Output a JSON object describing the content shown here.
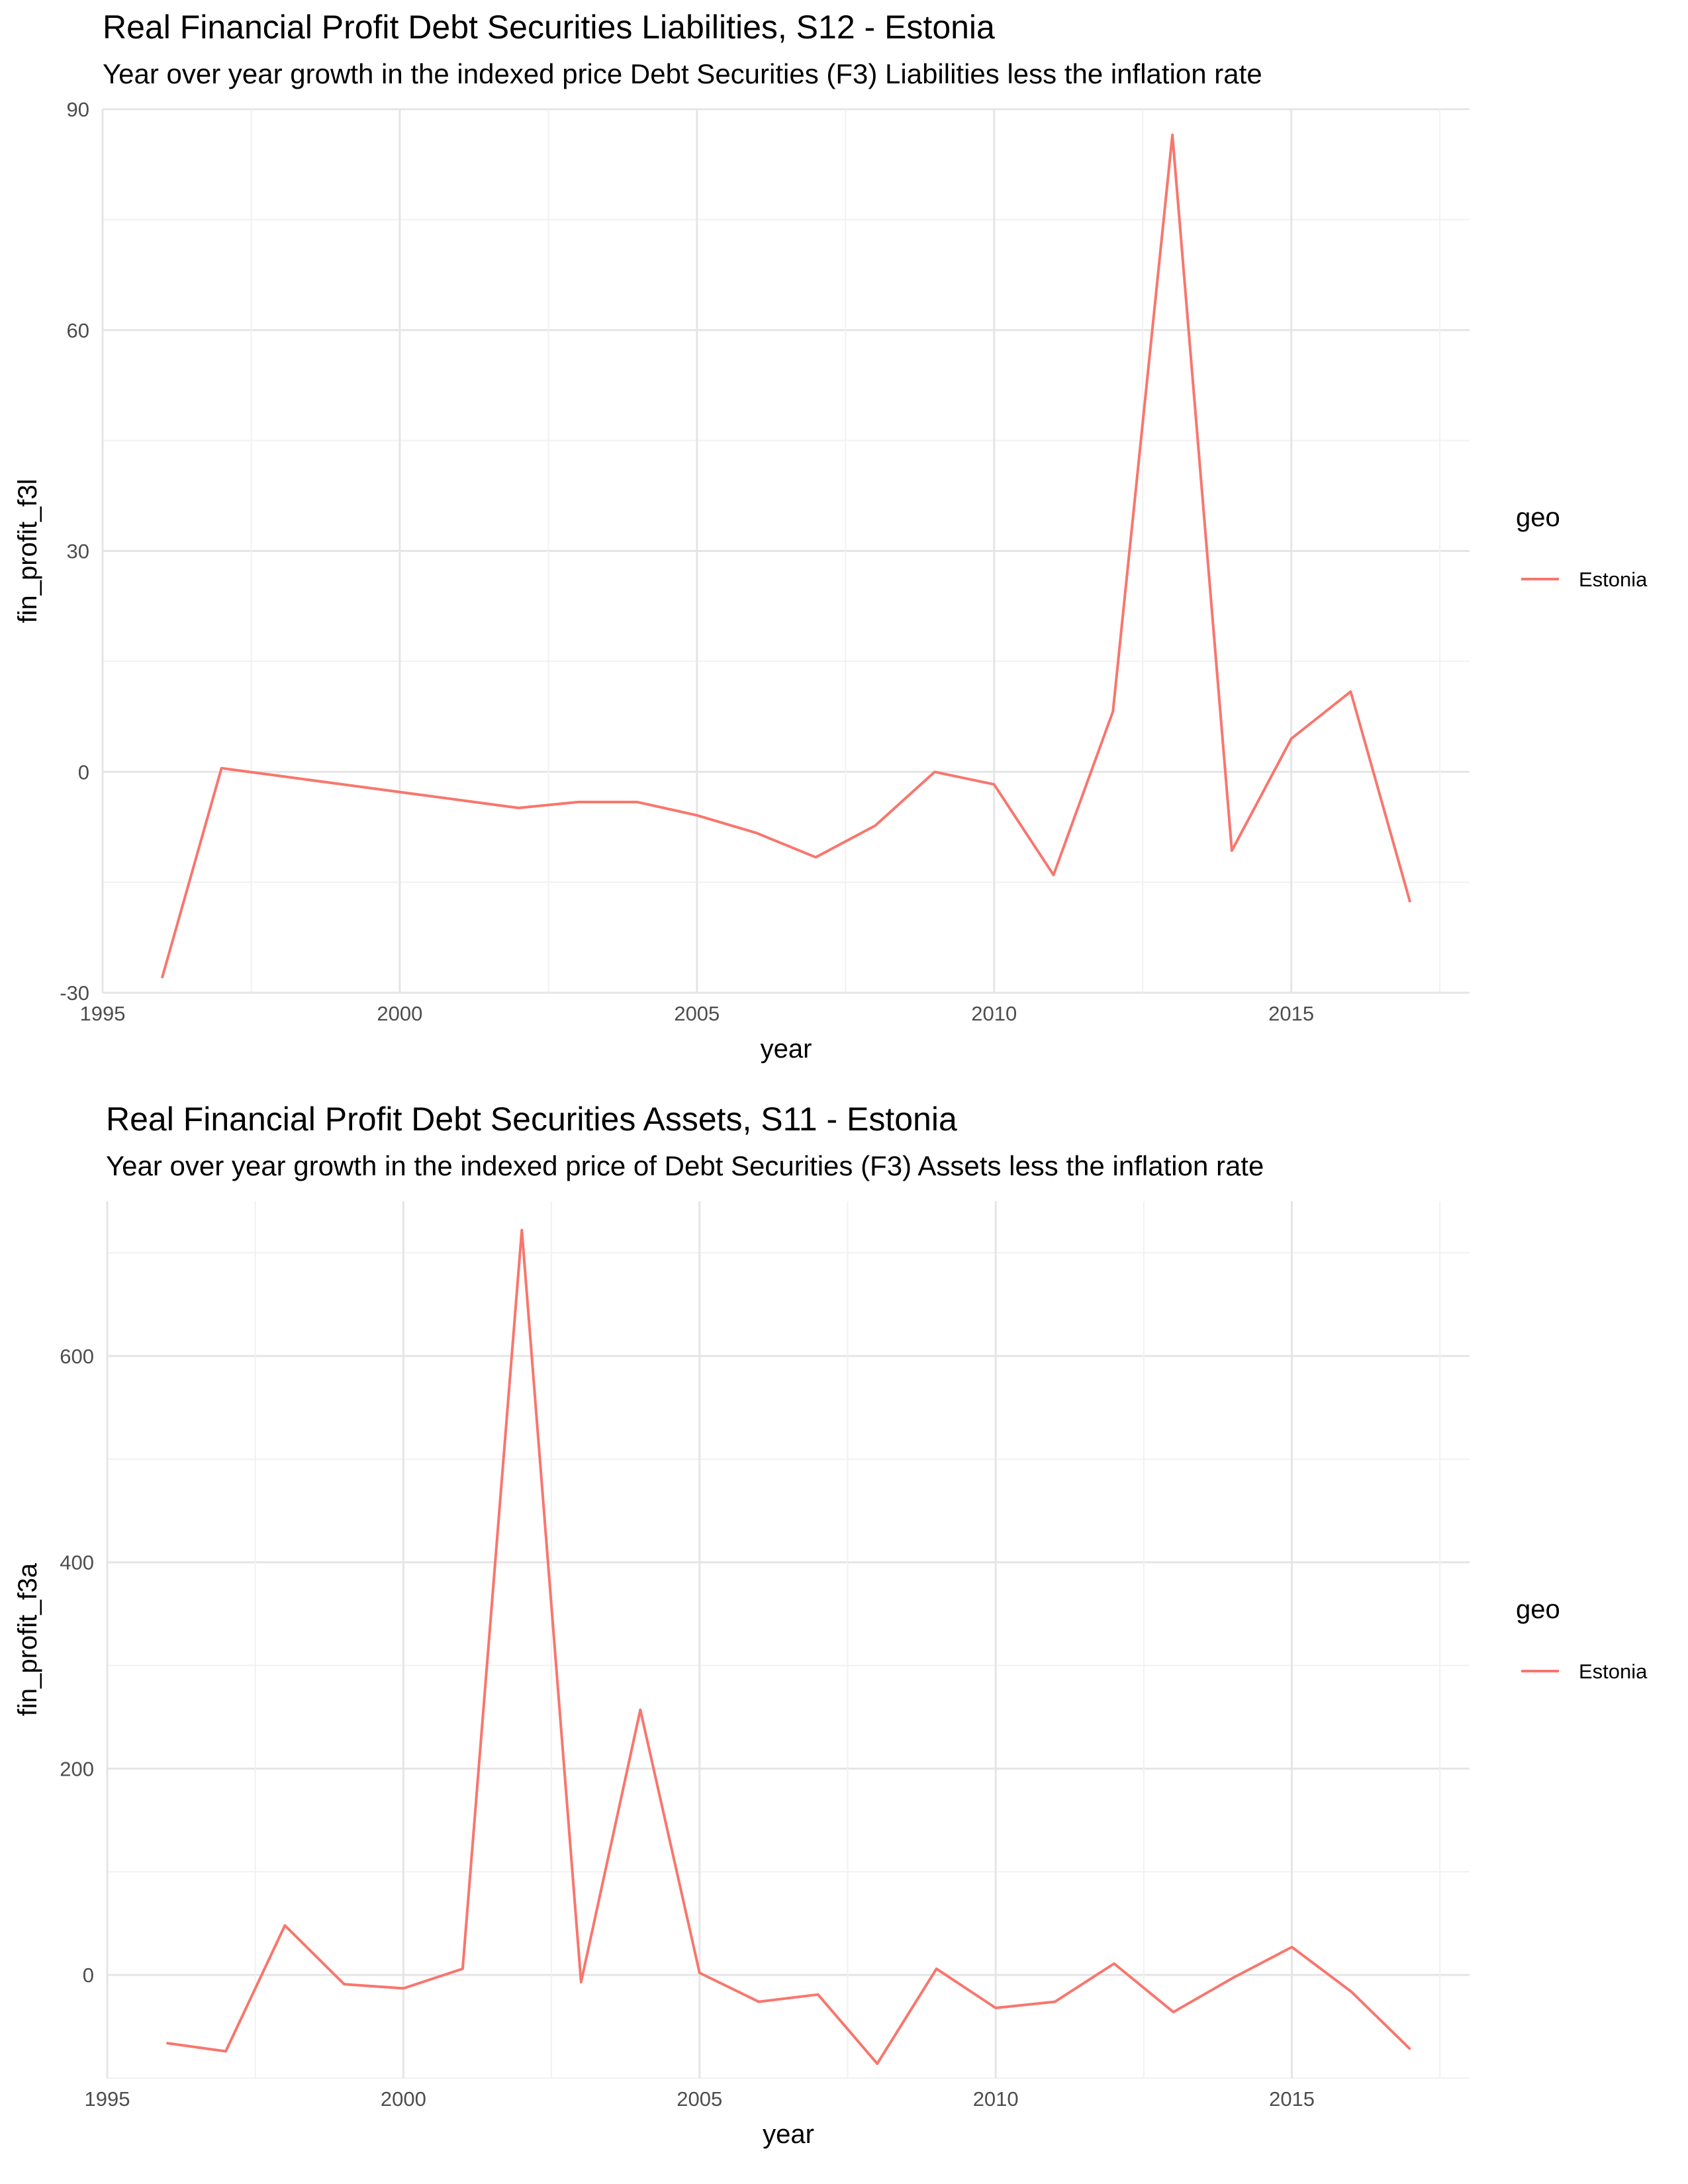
{
  "chart_data": [
    {
      "type": "line",
      "title": "Real Financial Profit Debt Securities Liabilities, S12 - Estonia",
      "subtitle": "Year over year growth in the indexed price Debt Securities (F3) Liabilities less the inflation rate",
      "xlabel": "year",
      "ylabel": "fin_profit_f3l",
      "xlim": [
        1995,
        2018
      ],
      "ylim": [
        -30,
        90
      ],
      "x_ticks": [
        1995,
        2000,
        2005,
        2010,
        2015
      ],
      "y_ticks": [
        -30,
        0,
        30,
        60,
        90
      ],
      "grid": true,
      "legend": {
        "title": "geo",
        "position": "right"
      },
      "series": [
        {
          "name": "Estonia",
          "color": "#F8766D",
          "x": [
            1996,
            1997,
            2002,
            2003,
            2004,
            2005,
            2006,
            2007,
            2008,
            2009,
            2010,
            2011,
            2012,
            2013,
            2014,
            2015,
            2016,
            2017
          ],
          "y": [
            -28,
            0.5,
            -4.9,
            -4.1,
            -4.1,
            -5.9,
            -8.3,
            -11.6,
            -7.3,
            0.0,
            -1.7,
            -14.0,
            8.2,
            86.5,
            -10.7,
            4.5,
            10.9,
            -17.7
          ]
        }
      ]
    },
    {
      "type": "line",
      "title": "Real Financial Profit Debt Securities Assets, S11 - Estonia",
      "subtitle": "Year over year growth in the indexed price of Debt Securities (F3) Assets less the inflation rate",
      "xlabel": "year",
      "ylabel": "fin_profit_f3a",
      "xlim": [
        1995,
        2018
      ],
      "ylim": [
        -100,
        750
      ],
      "x_ticks": [
        1995,
        2000,
        2005,
        2010,
        2015
      ],
      "y_ticks": [
        0,
        200,
        400,
        600
      ],
      "grid": true,
      "legend": {
        "title": "geo",
        "position": "right"
      },
      "series": [
        {
          "name": "Estonia",
          "color": "#F8766D",
          "x": [
            1996,
            1997,
            1998,
            1999,
            2000,
            2001,
            2002,
            2003,
            2004,
            2005,
            2006,
            2007,
            2008,
            2009,
            2010,
            2011,
            2012,
            2013,
            2014,
            2015,
            2016,
            2017
          ],
          "y": [
            -66,
            -74,
            48,
            -9,
            -13,
            6,
            722,
            -7,
            257,
            2,
            -26,
            -19,
            -86,
            6,
            -32,
            -26,
            11,
            -36,
            -3,
            27,
            -16,
            -72
          ]
        }
      ]
    }
  ]
}
